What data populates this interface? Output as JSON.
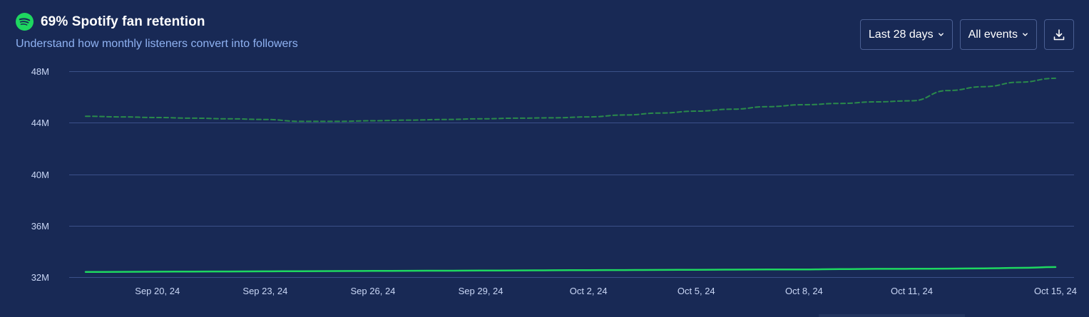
{
  "header": {
    "title": "69% Spotify fan retention",
    "subtitle": "Understand how monthly listeners convert into followers",
    "icon": "spotify-icon",
    "icon_color": "#1ed760"
  },
  "controls": {
    "date_range_label": "Last 28 days",
    "events_label": "All events",
    "download_icon": "download-icon"
  },
  "colors": {
    "background": "#182955",
    "grid": "#3b5189",
    "listeners_line": "#2a8a4b",
    "followers_line": "#1ed760"
  },
  "chart_data": {
    "type": "line",
    "x": [
      "Sep 18, 24",
      "Sep 19, 24",
      "Sep 20, 24",
      "Sep 21, 24",
      "Sep 22, 24",
      "Sep 23, 24",
      "Sep 24, 24",
      "Sep 25, 24",
      "Sep 26, 24",
      "Sep 27, 24",
      "Sep 28, 24",
      "Sep 29, 24",
      "Sep 30, 24",
      "Oct 1, 24",
      "Oct 2, 24",
      "Oct 3, 24",
      "Oct 4, 24",
      "Oct 5, 24",
      "Oct 6, 24",
      "Oct 7, 24",
      "Oct 8, 24",
      "Oct 9, 24",
      "Oct 10, 24",
      "Oct 11, 24",
      "Oct 12, 24",
      "Oct 13, 24",
      "Oct 14, 24",
      "Oct 15, 24"
    ],
    "x_tick_labels": [
      "Sep 20, 24",
      "Sep 23, 24",
      "Sep 26, 24",
      "Sep 29, 24",
      "Oct 2, 24",
      "Oct 5, 24",
      "Oct 8, 24",
      "Oct 11, 24",
      "Oct 15, 24"
    ],
    "y_ticks": [
      32,
      36,
      40,
      44,
      48
    ],
    "y_tick_labels": [
      "32M",
      "36M",
      "40M",
      "44M",
      "48M"
    ],
    "ylim": [
      32,
      48
    ],
    "grid": true,
    "legend": "none",
    "series": [
      {
        "style": "dashed",
        "values": [
          44.5,
          44.45,
          44.4,
          44.35,
          44.3,
          44.25,
          44.1,
          44.1,
          44.15,
          44.2,
          44.25,
          44.3,
          44.35,
          44.38,
          44.45,
          44.6,
          44.75,
          44.9,
          45.05,
          45.25,
          45.4,
          45.5,
          45.62,
          45.7,
          46.5,
          46.8,
          47.15,
          47.45
        ]
      },
      {
        "style": "solid",
        "values": [
          32.4,
          32.41,
          32.42,
          32.43,
          32.44,
          32.45,
          32.46,
          32.47,
          32.48,
          32.49,
          32.5,
          32.51,
          32.52,
          32.53,
          32.54,
          32.55,
          32.56,
          32.57,
          32.58,
          32.59,
          32.6,
          32.62,
          32.64,
          32.65,
          32.66,
          32.68,
          32.72,
          32.78
        ]
      }
    ]
  }
}
